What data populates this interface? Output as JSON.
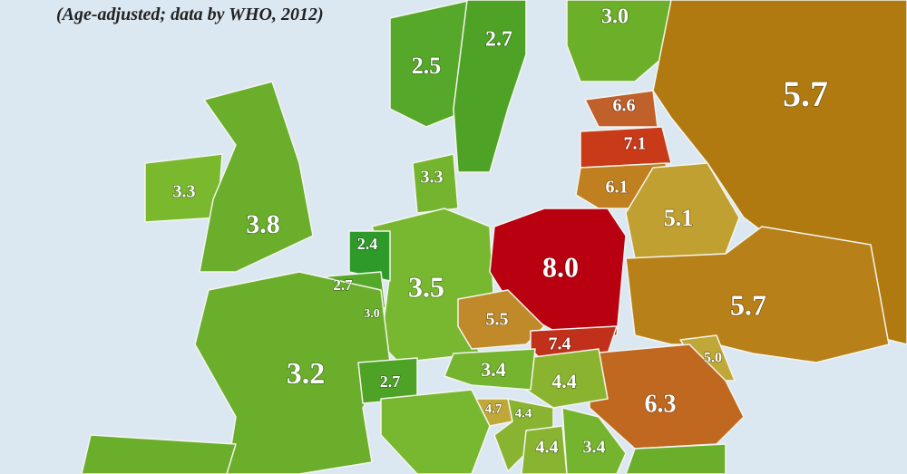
{
  "map": {
    "subtitle": "(Age-adjusted; data by WHO, 2012)",
    "labels": [
      "2.5",
      "2.7",
      "3.0",
      "5.7",
      "6.6",
      "7.1",
      "6.1",
      "5.1",
      "3.3",
      "3.8",
      "3.3",
      "2.4",
      "2.7",
      "3.0",
      "3.5",
      "8.0",
      "5.5",
      "7.4",
      "5.7",
      "5.0",
      "6.3",
      "4.4",
      "3.4",
      "2.7",
      "3.2",
      "4.7",
      "4.4",
      "4.4",
      "3.4"
    ]
  }
}
